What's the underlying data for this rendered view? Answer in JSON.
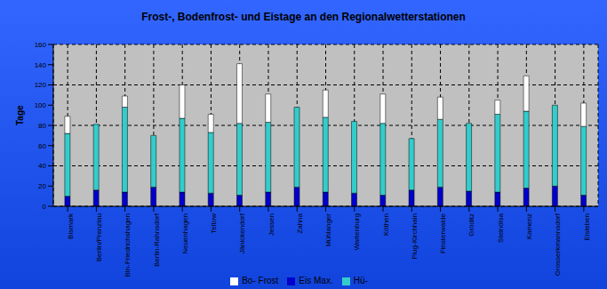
{
  "chart_data": {
    "type": "bar",
    "title": "Frost-, Bodenfrost- und Eistage an den Regionalwetterstationen",
    "y_label": "Tage",
    "stacked": true,
    "grid": true,
    "legend": "bottom",
    "categories": [
      "Bismark",
      "Berlin/Prenzlau",
      "Bln-Friedrichshagen",
      "Berlin-Rahnsdorf",
      "Neuenhagen",
      "Teltow",
      "Jänickendorf",
      "Jessen",
      "Zahna",
      "Mühlanger",
      "Wartenburg",
      "Köthen",
      "Flug-Kirchhain",
      "Finsterwalde",
      "Gröditz",
      "Steinölsa",
      "Kamenz",
      "Grosserkmannsdorf",
      "Eisleben"
    ],
    "series": [
      {
        "name": "Eis Max.",
        "color": "#0000cc",
        "values": [
          10,
          16,
          14,
          19,
          14,
          13,
          11,
          14,
          19,
          14,
          13,
          11,
          16,
          19,
          15,
          14,
          18,
          20,
          11
        ]
      },
      {
        "name": "Hü-",
        "color": "#33cccc",
        "values": [
          62,
          65,
          84,
          51,
          73,
          60,
          71,
          69,
          79,
          74,
          71,
          71,
          51,
          67,
          67,
          77,
          76,
          80,
          68
        ]
      },
      {
        "name": "Bo- Frost",
        "color": "#ffffff",
        "values": [
          17,
          0,
          11,
          0,
          33,
          18,
          59,
          28,
          0,
          27,
          0,
          29,
          0,
          22,
          0,
          14,
          35,
          0,
          23
        ]
      }
    ],
    "ylim": [
      0,
      160
    ],
    "yticks": [
      0,
      20,
      40,
      60,
      80,
      100,
      120,
      140,
      160
    ]
  }
}
